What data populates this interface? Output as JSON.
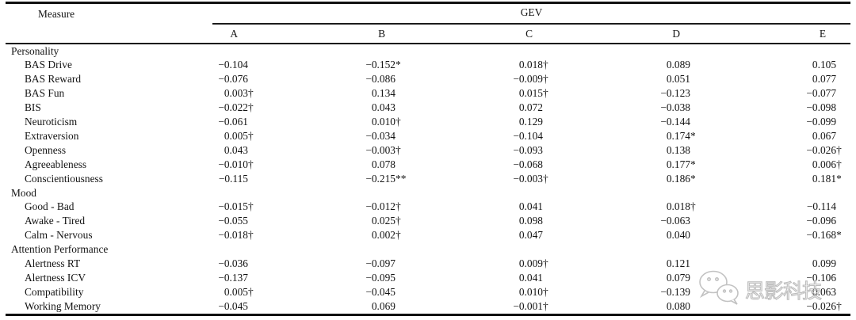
{
  "table": {
    "measure_header": "Measure",
    "group_header": "GEV",
    "columns": [
      "A",
      "B",
      "C",
      "D",
      "E"
    ],
    "sections": [
      {
        "label": "Personality",
        "rows": [
          {
            "label": "BAS Drive",
            "values": [
              "−0.104",
              "−0.152*",
              "0.018†",
              "0.089",
              "0.105"
            ]
          },
          {
            "label": "BAS Reward",
            "values": [
              "−0.076",
              "−0.086",
              "−0.009†",
              "0.051",
              "0.077"
            ]
          },
          {
            "label": "BAS Fun",
            "values": [
              "0.003†",
              "0.134",
              "0.015†",
              "−0.123",
              "−0.077"
            ]
          },
          {
            "label": "BIS",
            "values": [
              "−0.022†",
              "0.043",
              "0.072",
              "−0.038",
              "−0.098"
            ]
          },
          {
            "label": "Neuroticism",
            "values": [
              "−0.061",
              "0.010†",
              "0.129",
              "−0.144",
              "−0.099"
            ]
          },
          {
            "label": "Extraversion",
            "values": [
              "0.005†",
              "−0.034",
              "−0.104",
              "0.174*",
              "0.067"
            ]
          },
          {
            "label": "Openness",
            "values": [
              "0.043",
              "−0.003†",
              "−0.093",
              "0.138",
              "−0.026†"
            ]
          },
          {
            "label": "Agreeableness",
            "values": [
              "−0.010†",
              "0.078",
              "−0.068",
              "0.177*",
              "0.006†"
            ]
          },
          {
            "label": "Conscientiousness",
            "values": [
              "−0.115",
              "−0.215**",
              "−0.003†",
              "0.186*",
              "0.181*"
            ]
          }
        ]
      },
      {
        "label": "Mood",
        "rows": [
          {
            "label": "Good - Bad",
            "values": [
              "−0.015†",
              "−0.012†",
              "0.041",
              "0.018†",
              "−0.114"
            ]
          },
          {
            "label": "Awake - Tired",
            "values": [
              "−0.055",
              "0.025†",
              "0.098",
              "−0.063",
              "−0.096"
            ]
          },
          {
            "label": "Calm - Nervous",
            "values": [
              "−0.018†",
              "0.002†",
              "0.047",
              "0.040",
              "−0.168*"
            ]
          }
        ]
      },
      {
        "label": "Attention Performance",
        "rows": [
          {
            "label": "Alertness RT",
            "values": [
              "−0.036",
              "−0.097",
              "0.009†",
              "0.121",
              "0.099"
            ]
          },
          {
            "label": "Alertness ICV",
            "values": [
              "−0.137",
              "−0.095",
              "0.041",
              "0.079",
              "−0.106"
            ]
          },
          {
            "label": "Compatibility",
            "values": [
              "0.005†",
              "−0.045",
              "0.010†",
              "−0.139",
              "0.063"
            ]
          },
          {
            "label": "Working Memory",
            "values": [
              "−0.045",
              "0.069",
              "−0.001†",
              "0.080",
              "−0.026†"
            ]
          }
        ]
      }
    ]
  },
  "watermark": {
    "text": "思影科技",
    "icon": "wechat-icon",
    "color": "#bdbdbd"
  }
}
